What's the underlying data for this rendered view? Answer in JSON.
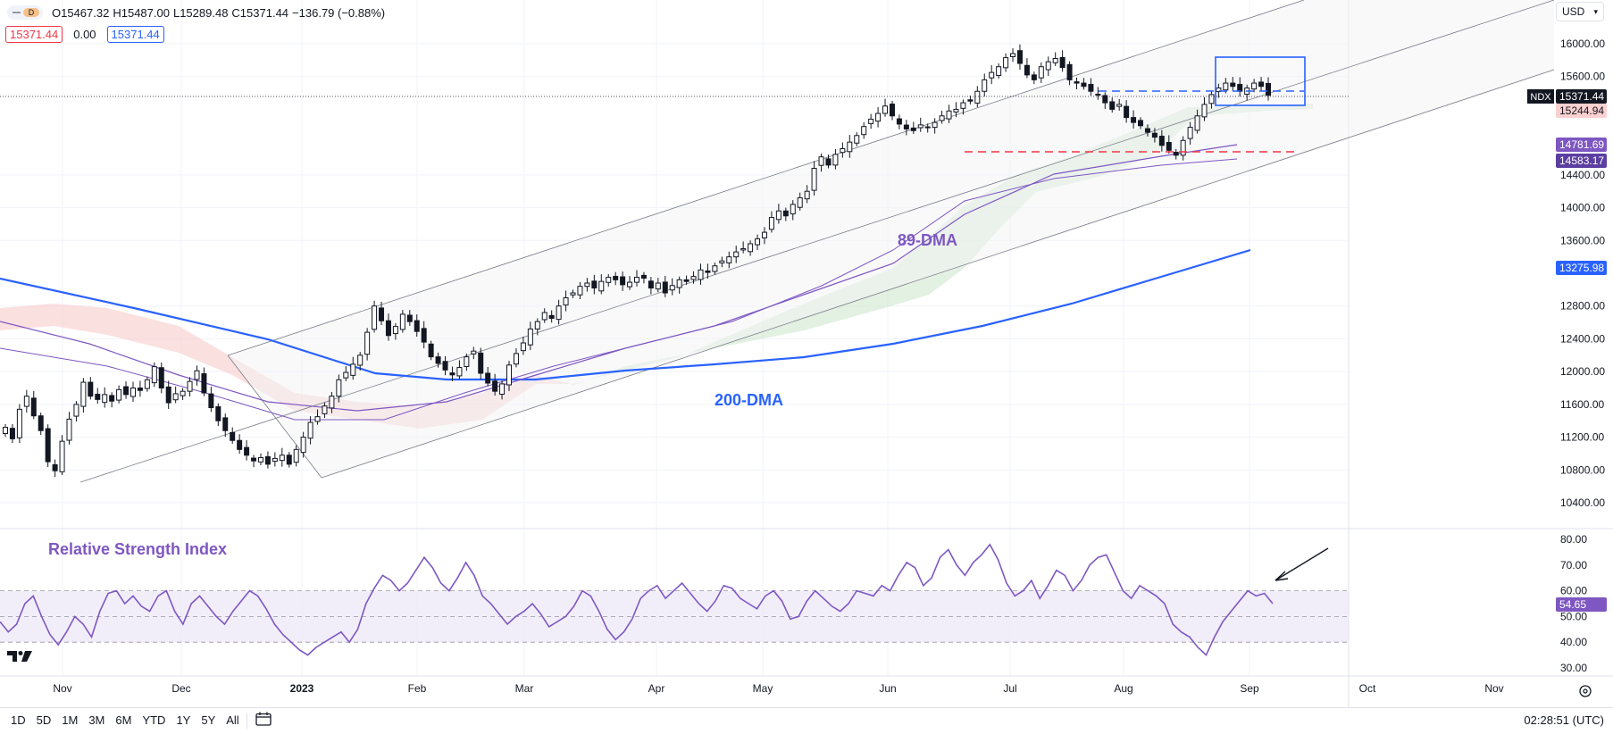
{
  "header": {
    "interval": "D",
    "open": "O15467.32",
    "high": "H15487.00",
    "low": "L15289.48",
    "close": "C15371.44",
    "change": "−136.79 (−0.88%)",
    "badge_bid": "15371.44",
    "badge_spread": "0.00",
    "badge_ask": "15371.44",
    "currency": "USD"
  },
  "bottom_bar": {
    "ranges": [
      "1D",
      "5D",
      "1M",
      "3M",
      "6M",
      "YTD",
      "1Y",
      "5Y",
      "All"
    ],
    "clock": "02:28:51 (UTC)"
  },
  "colors": {
    "candle_up": "#131722",
    "candle_up_fill": "#ffffff",
    "dma200": "#2962ff",
    "dma89": "#7e57c2",
    "cloud_bear": "#f8c6c6",
    "cloud_bull": "#cfe8cf",
    "rsi_line": "#7e57c2",
    "rsi_band": "#ede7f6",
    "channel": "#787b86",
    "red_dash": "#f23645",
    "blue_box": "#2962ff",
    "label_purple": "#7e57c2"
  },
  "chart_data": {
    "type": "candlestick",
    "symbol": "NDX",
    "x_tick_labels": [
      "Nov",
      "Dec",
      "2023",
      "Feb",
      "Mar",
      "Apr",
      "May",
      "Jun",
      "Jul",
      "Aug",
      "Sep",
      "Oct",
      "Nov"
    ],
    "price_axis": {
      "range": [
        10100,
        16400
      ],
      "ticks": [
        "16000.00",
        "15600.00",
        "14400.00",
        "14000.00",
        "13600.00",
        "12800.00",
        "12400.00",
        "12000.00",
        "11600.00",
        "11200.00",
        "10800.00",
        "10400.00"
      ]
    },
    "price_labels": {
      "last": {
        "text": "NDX",
        "value": "15371.44"
      },
      "cloud_upper": "15244.94",
      "dma_a": "14781.69",
      "dma_b": "14583.17",
      "dma200": "13275.98"
    },
    "annotations": {
      "dma89_label": "89-DMA",
      "dma200_label": "200-DMA",
      "rsi_title": "Relative Strength Index"
    },
    "candles_daily_close_approx": [
      {
        "month": "Nov",
        "values": [
          11320,
          11180,
          11540,
          11700,
          11460,
          11280,
          10900,
          10790,
          11150,
          11420,
          11600,
          11870,
          11700,
          11660,
          11720,
          11640,
          11780,
          11720,
          11800,
          11770
        ]
      },
      {
        "month": "Dec",
        "values": [
          11900,
          12060,
          11800,
          11620,
          11730,
          11760,
          11880,
          12010,
          11740,
          11560,
          11400,
          11280,
          11160,
          11050,
          10980,
          10910,
          10950,
          10870,
          10940,
          10980
        ]
      },
      {
        "month": "Jan",
        "values": [
          10870,
          11050,
          11200,
          11380,
          11450,
          11580,
          11700,
          11900,
          11990,
          12090,
          12200,
          12480,
          12800,
          12620,
          12440,
          12550,
          12700,
          12610,
          12490
        ]
      },
      {
        "month": "Feb",
        "values": [
          12360,
          12180,
          12100,
          12020,
          11960,
          12050,
          12180,
          12250,
          11980,
          11860,
          11760,
          11850,
          12080,
          12220,
          12350,
          12520,
          12610,
          12720,
          12650
        ]
      },
      {
        "month": "Mar",
        "values": [
          12800,
          12900,
          12960,
          13040,
          13080,
          13020,
          13100,
          13150,
          13120,
          13060,
          13090,
          13150,
          13140,
          13020,
          13080,
          12960,
          13050,
          13120,
          13100
        ]
      },
      {
        "month": "Apr",
        "values": [
          13160,
          13240,
          13210,
          13290,
          13350,
          13400,
          13460,
          13500,
          13560,
          13620,
          13700,
          13880,
          13960,
          13900,
          14040,
          14120,
          14200,
          14480,
          14620
        ]
      },
      {
        "month": "May",
        "values": [
          14520,
          14650,
          14720,
          14800,
          14880,
          14990,
          15080,
          15150,
          15240,
          15120,
          15020,
          14960,
          14940,
          15010,
          14980,
          15040,
          15120,
          15180,
          15200
        ]
      },
      {
        "month": "Jun",
        "values": [
          15280,
          15300,
          15420,
          15560,
          15650,
          15720,
          15830,
          15880,
          15760,
          15620,
          15560,
          15720,
          15780,
          15820,
          15710,
          15560,
          15520,
          15480,
          15420
        ]
      },
      {
        "month": "Jul",
        "values": [
          15380,
          15280,
          15200,
          15260,
          15100,
          15040,
          15000,
          14920,
          14860,
          14760,
          14700,
          14640,
          14820,
          14980,
          15120,
          15260,
          15380,
          15460,
          15520,
          15480
        ]
      },
      {
        "month": "Aug",
        "values": [
          15420,
          15460,
          15520,
          15480,
          15371
        ]
      }
    ],
    "rsi": {
      "ticks": [
        "80.00",
        "70.00",
        "60.00",
        "50.00",
        "40.00",
        "30.00"
      ],
      "range": [
        28,
        82
      ],
      "band": [
        40,
        60
      ],
      "last": "54.65",
      "values": [
        48,
        44,
        47,
        55,
        58,
        50,
        43,
        39,
        44,
        50,
        47,
        42,
        52,
        59,
        60,
        55,
        58,
        54,
        52,
        58,
        60,
        52,
        47,
        55,
        58,
        54,
        50,
        47,
        52,
        56,
        60,
        58,
        53,
        47,
        43,
        40,
        37,
        35,
        38,
        40,
        42,
        44,
        40,
        45,
        55,
        61,
        66,
        64,
        60,
        63,
        68,
        73,
        69,
        63,
        60,
        65,
        71,
        66,
        58,
        55,
        51,
        47,
        50,
        52,
        55,
        51,
        46,
        48,
        50,
        54,
        60,
        58,
        52,
        45,
        41,
        44,
        49,
        57,
        60,
        62,
        57,
        60,
        63,
        59,
        55,
        52,
        56,
        62,
        61,
        57,
        55,
        53,
        58,
        60,
        56,
        49,
        50,
        56,
        60,
        57,
        54,
        52,
        55,
        60,
        59,
        58,
        62,
        60,
        66,
        71,
        69,
        62,
        65,
        73,
        76,
        70,
        66,
        71,
        74,
        78,
        72,
        63,
        58,
        60,
        64,
        57,
        62,
        68,
        66,
        60,
        64,
        70,
        73,
        74,
        67,
        60,
        57,
        62,
        60,
        58,
        55,
        47,
        44,
        42,
        38,
        35,
        42,
        48,
        52,
        56,
        60,
        58,
        59,
        55
      ]
    }
  }
}
